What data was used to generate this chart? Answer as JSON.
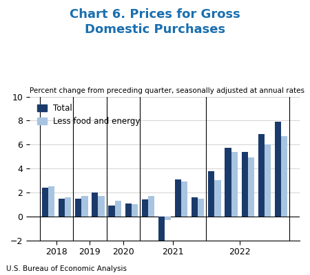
{
  "title": "Chart 6. Prices for Gross\nDomestic Purchases",
  "subtitle": "Percent change from preceding quarter, seasonally adjusted at annual rates",
  "footer": "U.S. Bureau of Economic Analysis",
  "legend": [
    "Total",
    "Less food and energy"
  ],
  "color_total": "#1a3a6b",
  "color_less": "#a8c4e0",
  "title_color": "#1a6faf",
  "ylim": [
    -2,
    10
  ],
  "yticks": [
    -2,
    0,
    2,
    4,
    6,
    8,
    10
  ],
  "year_labels": [
    "2018",
    "2019",
    "2020",
    "2021",
    "2022"
  ],
  "total": [
    2.4,
    1.5,
    1.5,
    2.0,
    0.9,
    1.1,
    1.4,
    -2.6,
    3.1,
    1.6,
    3.8,
    5.7,
    5.4,
    6.9,
    7.9
  ],
  "less": [
    2.5,
    1.6,
    1.7,
    1.7,
    1.3,
    1.0,
    1.7,
    -0.3,
    2.9,
    1.5,
    3.0,
    5.4,
    4.9,
    6.0,
    6.7
  ],
  "n_quarters": 15,
  "bar_width": 0.38,
  "figsize": [
    4.5,
    4.0
  ],
  "dpi": 100
}
